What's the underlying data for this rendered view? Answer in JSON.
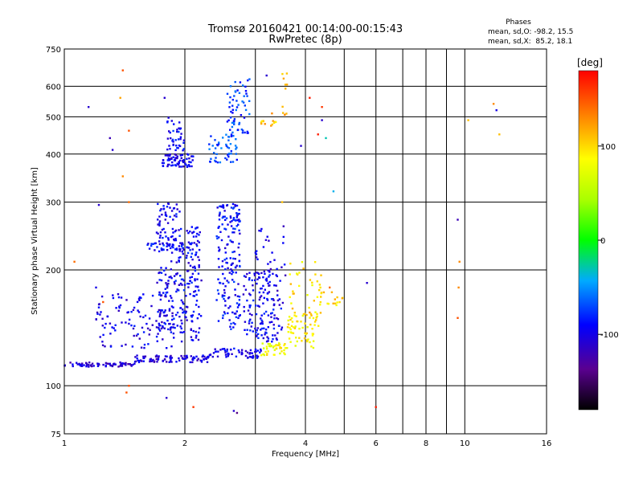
{
  "chart_data": {
    "type": "scatter",
    "title": "Tromsø 20160421 00:14:00-00:15:43",
    "subtitle": "RwPretec (8p)",
    "xlabel": "Frequency [MHz]",
    "ylabel": "Stationary phase Virtual Height [km]",
    "x_scale": "log",
    "y_scale": "log",
    "xlim": [
      1,
      16
    ],
    "ylim": [
      75,
      750
    ],
    "x_ticks": [
      1,
      2,
      4,
      6,
      8,
      10,
      16
    ],
    "y_ticks": [
      75,
      100,
      200,
      300,
      400,
      500,
      600,
      750
    ],
    "grid": true,
    "stats": {
      "title": "Phases",
      "line_o": "mean, sd,O: -98.2, 15.5",
      "line_x": "mean, sd,X:  85.2, 18.1"
    },
    "colorbar": {
      "unit": "[deg]",
      "range": [
        -180,
        180
      ],
      "ticks": [
        100,
        0,
        -100
      ]
    },
    "point_groups": [
      {
        "f": [
          1.0,
          1.5
        ],
        "h": [
          112,
          115
        ],
        "phase": -110,
        "n": 70
      },
      {
        "f": [
          1.5,
          2.3
        ],
        "h": [
          115,
          120
        ],
        "phase": -105,
        "n": 90
      },
      {
        "f": [
          2.3,
          3.1
        ],
        "h": [
          118,
          125
        ],
        "phase": -100,
        "n": 60
      },
      {
        "f": [
          3.1,
          3.6
        ],
        "h": [
          120,
          130
        ],
        "phase": 85,
        "n": 40
      },
      {
        "f": [
          3.6,
          4.3
        ],
        "h": [
          125,
          155
        ],
        "phase": 90,
        "n": 45
      },
      {
        "f": [
          1.2,
          1.9
        ],
        "h": [
          125,
          175
        ],
        "phase": -100,
        "n": 120
      },
      {
        "f": [
          1.7,
          1.95
        ],
        "h": [
          140,
          300
        ],
        "phase": -95,
        "n": 160
      },
      {
        "f": [
          1.95,
          2.2
        ],
        "h": [
          130,
          260
        ],
        "phase": -95,
        "n": 130
      },
      {
        "f": [
          1.6,
          2.1
        ],
        "h": [
          225,
          235
        ],
        "phase": -90,
        "n": 40
      },
      {
        "f": [
          2.4,
          2.75
        ],
        "h": [
          140,
          300
        ],
        "phase": -90,
        "n": 170
      },
      {
        "f": [
          2.8,
          3.5
        ],
        "h": [
          130,
          200
        ],
        "phase": -95,
        "n": 140
      },
      {
        "f": [
          3.0,
          3.6
        ],
        "h": [
          160,
          260
        ],
        "phase": -105,
        "n": 40
      },
      {
        "f": [
          3.6,
          4.4
        ],
        "h": [
          135,
          210
        ],
        "phase": 95,
        "n": 55
      },
      {
        "f": [
          4.3,
          5.0
        ],
        "h": [
          160,
          175
        ],
        "phase": 100,
        "n": 15
      },
      {
        "f": [
          1.75,
          2.1
        ],
        "h": [
          370,
          400
        ],
        "phase": -100,
        "n": 70
      },
      {
        "f": [
          1.8,
          2.0
        ],
        "h": [
          400,
          500
        ],
        "phase": -90,
        "n": 40
      },
      {
        "f": [
          2.3,
          2.7
        ],
        "h": [
          380,
          450
        ],
        "phase": -70,
        "n": 50
      },
      {
        "f": [
          2.55,
          2.9
        ],
        "h": [
          450,
          640
        ],
        "phase": -75,
        "n": 60
      },
      {
        "f": [
          3.1,
          3.4
        ],
        "h": [
          470,
          490
        ],
        "phase": 110,
        "n": 12
      },
      {
        "f": [
          3.5,
          3.6
        ],
        "h": [
          500,
          650
        ],
        "phase": 115,
        "n": 10
      }
    ],
    "scatter_points": [
      {
        "f": 1.15,
        "h": 530,
        "phase": -110
      },
      {
        "f": 1.3,
        "h": 440,
        "phase": -120
      },
      {
        "f": 1.32,
        "h": 410,
        "phase": -110
      },
      {
        "f": 1.4,
        "h": 660,
        "phase": 150
      },
      {
        "f": 1.38,
        "h": 560,
        "phase": 120
      },
      {
        "f": 1.45,
        "h": 460,
        "phase": 150
      },
      {
        "f": 1.4,
        "h": 350,
        "phase": 130
      },
      {
        "f": 1.22,
        "h": 295,
        "phase": -110
      },
      {
        "f": 1.45,
        "h": 300,
        "phase": 140
      },
      {
        "f": 1.06,
        "h": 210,
        "phase": 140
      },
      {
        "f": 1.2,
        "h": 180,
        "phase": -100
      },
      {
        "f": 1.25,
        "h": 165,
        "phase": 150
      },
      {
        "f": 1.45,
        "h": 100,
        "phase": 150
      },
      {
        "f": 1.43,
        "h": 96,
        "phase": 150
      },
      {
        "f": 1.78,
        "h": 560,
        "phase": -110
      },
      {
        "f": 1.8,
        "h": 93,
        "phase": -110
      },
      {
        "f": 2.1,
        "h": 88,
        "phase": 160
      },
      {
        "f": 2.65,
        "h": 86,
        "phase": -110
      },
      {
        "f": 2.7,
        "h": 85,
        "phase": -140
      },
      {
        "f": 3.2,
        "h": 640,
        "phase": -110
      },
      {
        "f": 3.3,
        "h": 510,
        "phase": 130
      },
      {
        "f": 3.9,
        "h": 420,
        "phase": -110
      },
      {
        "f": 4.1,
        "h": 560,
        "phase": 170
      },
      {
        "f": 4.4,
        "h": 530,
        "phase": 160
      },
      {
        "f": 4.4,
        "h": 490,
        "phase": -110
      },
      {
        "f": 4.3,
        "h": 450,
        "phase": 170
      },
      {
        "f": 4.5,
        "h": 440,
        "phase": -30
      },
      {
        "f": 4.7,
        "h": 320,
        "phase": -40
      },
      {
        "f": 4.6,
        "h": 180,
        "phase": 140
      },
      {
        "f": 5.7,
        "h": 185,
        "phase": -110
      },
      {
        "f": 6.0,
        "h": 88,
        "phase": 170
      },
      {
        "f": 9.6,
        "h": 270,
        "phase": -120
      },
      {
        "f": 9.7,
        "h": 210,
        "phase": 130
      },
      {
        "f": 9.65,
        "h": 180,
        "phase": 130
      },
      {
        "f": 9.6,
        "h": 150,
        "phase": 150
      },
      {
        "f": 10.2,
        "h": 490,
        "phase": 110
      },
      {
        "f": 11.8,
        "h": 540,
        "phase": 130
      },
      {
        "f": 12.0,
        "h": 520,
        "phase": -100
      },
      {
        "f": 12.2,
        "h": 450,
        "phase": 110
      },
      {
        "f": 4.1,
        "h": 155,
        "phase": 130
      },
      {
        "f": 3.5,
        "h": 300,
        "phase": 110
      }
    ]
  }
}
